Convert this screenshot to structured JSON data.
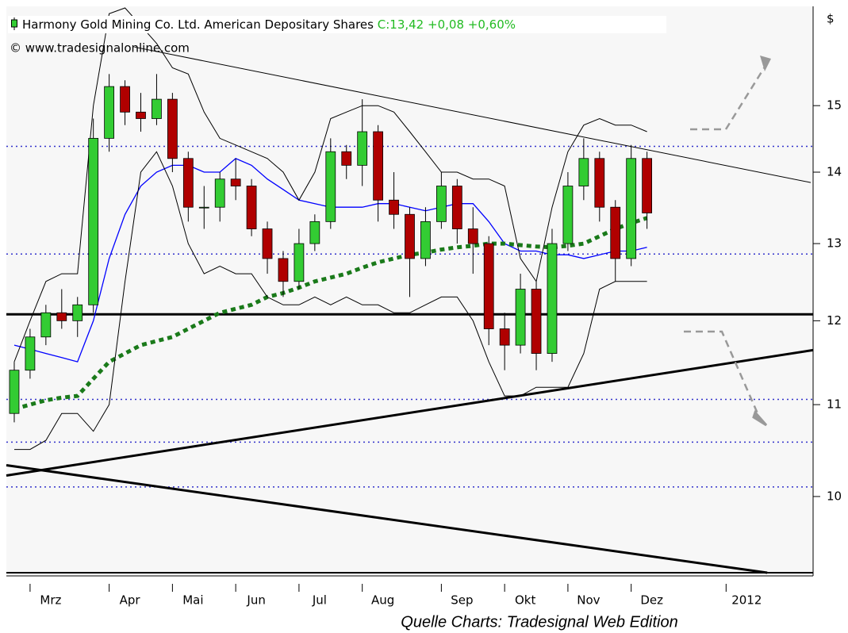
{
  "chart_data": {
    "type": "candlestick",
    "title": "Harmony Gold Mining Co. Ltd. American Depositary Shares",
    "close_label": "C:13,42",
    "change": "+0,08",
    "change_pct": "+0,60%",
    "source": "© www.tradesignalonline.com",
    "unit": "$",
    "footer": "Quelle Charts: Tradesignal Web Edition",
    "log_scale": true,
    "up_color": "#33cc33",
    "down_color": "#b00000",
    "ylim": [
      9.24,
      16.6
    ],
    "yticks": [
      10,
      11,
      12,
      13,
      14,
      15
    ],
    "categories": [
      null,
      "Mrz",
      null,
      null,
      null,
      null,
      "Apr",
      null,
      null,
      null,
      "Mai",
      null,
      null,
      null,
      "Jun",
      null,
      null,
      null,
      "Jul",
      null,
      null,
      null,
      "Aug",
      null,
      null,
      null,
      null,
      "Sep",
      null,
      null,
      null,
      "Okt",
      null,
      null,
      null,
      "Nov",
      null,
      null,
      null,
      "Dez",
      null,
      null,
      null,
      null,
      null,
      "2012",
      null,
      null,
      null,
      null,
      null
    ],
    "open": [
      10.9,
      11.4,
      11.8,
      12.1,
      12.0,
      12.2,
      14.5,
      15.3,
      14.9,
      14.8,
      15.1,
      14.2,
      13.5,
      13.5,
      13.9,
      13.8,
      13.2,
      12.8,
      12.5,
      13.0,
      13.3,
      14.3,
      14.1,
      14.6,
      13.6,
      13.4,
      12.8,
      13.3,
      13.8,
      13.2,
      13.0,
      11.9,
      11.7,
      12.4,
      11.6,
      13.0,
      13.8,
      14.2,
      13.5,
      12.8,
      14.2,
      null,
      null,
      null,
      null,
      null,
      null,
      null,
      null,
      null,
      null
    ],
    "high": [
      11.5,
      11.9,
      12.2,
      12.4,
      12.3,
      14.8,
      15.5,
      15.4,
      15.2,
      15.5,
      15.2,
      14.3,
      13.8,
      14.0,
      14.2,
      13.9,
      13.3,
      12.9,
      13.2,
      13.4,
      14.5,
      14.4,
      15.1,
      14.7,
      14.0,
      13.5,
      13.5,
      14.0,
      13.9,
      13.5,
      13.1,
      12.1,
      12.6,
      12.5,
      13.2,
      14.0,
      14.5,
      14.3,
      13.6,
      14.4,
      14.3,
      null,
      null,
      null,
      null,
      null,
      null,
      null,
      null,
      null,
      null
    ],
    "low": [
      10.8,
      11.3,
      11.7,
      11.9,
      11.8,
      12.1,
      14.3,
      14.7,
      14.6,
      14.7,
      14.0,
      13.3,
      13.2,
      13.3,
      13.6,
      13.1,
      12.6,
      12.3,
      12.4,
      12.9,
      13.2,
      13.9,
      13.8,
      13.3,
      13.2,
      12.3,
      12.7,
      13.2,
      13.0,
      12.6,
      11.7,
      11.4,
      11.6,
      11.4,
      11.5,
      12.9,
      13.6,
      13.3,
      12.5,
      12.7,
      13.2,
      null,
      null,
      null,
      null,
      null,
      null,
      null,
      null,
      null,
      null
    ],
    "close": [
      11.4,
      11.8,
      12.1,
      12.0,
      12.2,
      14.5,
      15.3,
      14.9,
      14.8,
      15.1,
      14.2,
      13.5,
      13.5,
      13.9,
      13.8,
      13.2,
      12.8,
      12.5,
      13.0,
      13.3,
      14.3,
      14.1,
      14.6,
      13.6,
      13.4,
      12.8,
      13.3,
      13.8,
      13.2,
      13.0,
      11.9,
      11.7,
      12.4,
      11.6,
      13.0,
      13.8,
      14.2,
      13.5,
      12.8,
      14.2,
      13.42,
      null,
      null,
      null,
      null,
      null,
      null,
      null,
      null,
      null,
      null
    ],
    "series": [
      {
        "color": "#0000ff",
        "style": "solid",
        "values": [
          11.7,
          11.65,
          11.6,
          11.55,
          11.5,
          12.0,
          12.8,
          13.4,
          13.8,
          14.0,
          14.1,
          14.1,
          14.0,
          14.0,
          14.2,
          14.1,
          13.9,
          13.75,
          13.6,
          13.55,
          13.5,
          13.5,
          13.5,
          13.55,
          13.55,
          13.5,
          13.45,
          13.5,
          13.55,
          13.55,
          13.3,
          13.0,
          12.9,
          12.9,
          12.85,
          12.85,
          12.8,
          12.85,
          12.9,
          12.9,
          12.95,
          null,
          null,
          null,
          null,
          null,
          null,
          null,
          null,
          null,
          null
        ]
      },
      {
        "color": "#1a7a1a",
        "style": "dashed",
        "values": [
          10.95,
          11.0,
          11.05,
          11.08,
          11.1,
          11.3,
          11.5,
          11.6,
          11.7,
          11.75,
          11.8,
          11.9,
          12.0,
          12.1,
          12.15,
          12.2,
          12.3,
          12.35,
          12.42,
          12.5,
          12.55,
          12.6,
          12.68,
          12.75,
          12.8,
          12.85,
          12.88,
          12.92,
          12.95,
          12.97,
          13.0,
          13.0,
          12.98,
          12.96,
          12.95,
          12.97,
          13.0,
          13.1,
          13.2,
          13.28,
          13.35,
          null,
          null,
          null,
          null,
          null,
          null,
          null,
          null,
          null,
          null
        ]
      },
      {
        "color": "#000000",
        "style": "thin",
        "values": [
          11.5,
          12.0,
          12.5,
          12.6,
          12.6,
          15.0,
          16.5,
          16.6,
          16.3,
          16.0,
          15.6,
          15.5,
          14.9,
          14.5,
          14.4,
          14.3,
          14.2,
          14.0,
          13.6,
          14.0,
          14.8,
          14.9,
          15.0,
          15.0,
          14.9,
          14.6,
          14.3,
          14.0,
          14.0,
          13.9,
          13.9,
          13.8,
          12.8,
          12.5,
          13.5,
          14.3,
          14.7,
          14.8,
          14.7,
          14.7,
          14.6,
          null,
          null,
          null,
          null,
          null,
          null,
          null,
          null,
          null,
          null
        ]
      },
      {
        "color": "#000000",
        "style": "thin",
        "values": [
          10.5,
          10.5,
          10.6,
          10.9,
          10.9,
          10.7,
          11.0,
          12.5,
          14.0,
          14.3,
          13.8,
          13.0,
          12.6,
          12.7,
          12.6,
          12.6,
          12.3,
          12.2,
          12.2,
          12.3,
          12.2,
          12.3,
          12.2,
          12.2,
          12.1,
          12.1,
          12.2,
          12.3,
          12.3,
          12.0,
          11.5,
          11.1,
          11.1,
          11.2,
          11.2,
          11.2,
          11.6,
          12.4,
          12.5,
          12.5,
          12.5,
          null,
          null,
          null,
          null,
          null,
          null,
          null,
          null,
          null,
          null
        ]
      }
    ],
    "levels": [
      {
        "value": 12.08,
        "style": "solid"
      },
      {
        "value": 14.38,
        "style": "dotted"
      },
      {
        "value": 12.86,
        "style": "dotted"
      },
      {
        "value": 11.06,
        "style": "dotted"
      },
      {
        "value": 10.58,
        "style": "dotted"
      },
      {
        "value": 10.1,
        "style": "dotted"
      }
    ],
    "trendlines": [
      {
        "x": [
          7.6,
          50.35
        ],
        "values": [
          15.94,
          13.85
        ],
        "width": 1
      },
      {
        "x": [
          -0.5,
          50.5
        ],
        "values": [
          10.22,
          11.64
        ],
        "width": 3
      },
      {
        "x": [
          -0.5,
          47.6
        ],
        "values": [
          10.33,
          9.24
        ],
        "width": 3
      }
    ]
  }
}
